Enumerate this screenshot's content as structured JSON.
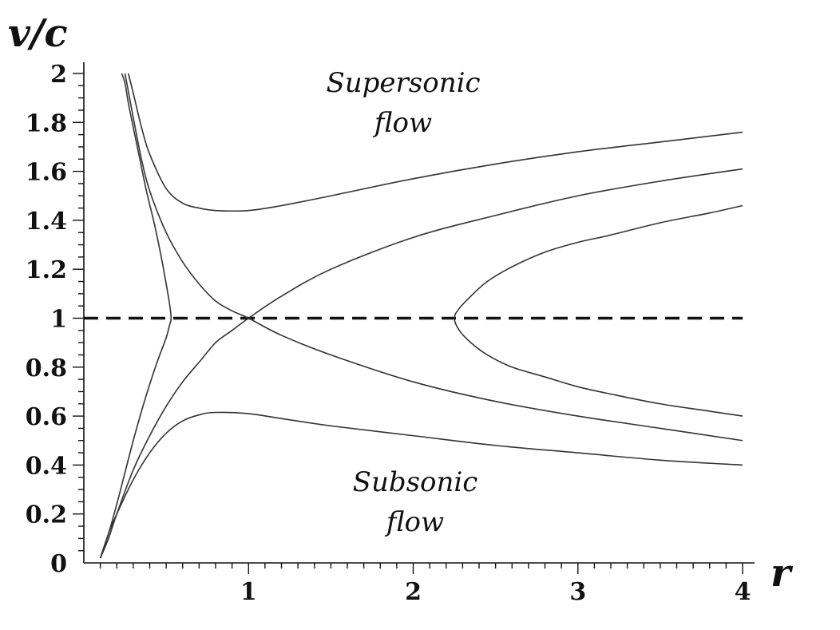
{
  "chart_data": {
    "type": "line",
    "xlabel": "r",
    "ylabel": "v/c",
    "xlim": [
      0,
      4
    ],
    "ylim": [
      0,
      2
    ],
    "x_ticks": [
      "1",
      "2",
      "3",
      "4"
    ],
    "y_ticks": [
      "0",
      "0.2",
      "0.4",
      "0.6",
      "0.8",
      "1",
      "1.2",
      "1.4",
      "1.6",
      "1.8",
      "2"
    ],
    "reference_line": {
      "y": 1,
      "style": "dashed"
    },
    "annotations": [
      {
        "lines": [
          "Supersonic",
          "flow"
        ]
      },
      {
        "lines": [
          "Subsonic",
          "flow"
        ]
      }
    ],
    "series": [
      {
        "x": [
          0.27,
          0.3,
          0.35,
          0.4,
          0.5,
          0.6,
          0.7,
          0.8,
          1.0,
          1.2,
          1.5,
          2.0,
          2.5,
          3.0,
          3.5,
          4.0
        ],
        "y": [
          2.0,
          1.92,
          1.78,
          1.67,
          1.53,
          1.47,
          1.45,
          1.44,
          1.44,
          1.46,
          1.5,
          1.57,
          1.63,
          1.68,
          1.72,
          1.76
        ]
      },
      {
        "x": [
          0.1,
          0.15,
          0.2,
          0.3,
          0.4,
          0.5,
          0.6,
          0.7,
          0.8,
          1.0,
          1.2,
          1.5,
          2.0,
          2.5,
          3.0,
          3.5,
          4.0
        ],
        "y": [
          0.02,
          0.12,
          0.2,
          0.34,
          0.45,
          0.53,
          0.58,
          0.605,
          0.615,
          0.61,
          0.59,
          0.56,
          0.52,
          0.48,
          0.45,
          0.42,
          0.4
        ]
      },
      {
        "x": [
          0.1,
          0.15,
          0.2,
          0.3,
          0.4,
          0.5,
          0.6,
          0.7,
          0.8,
          0.9,
          1.0,
          1.2,
          1.5,
          2.0,
          2.5,
          3.0,
          3.5,
          4.0
        ],
        "y": [
          0.02,
          0.1,
          0.2,
          0.38,
          0.52,
          0.64,
          0.74,
          0.82,
          0.9,
          0.95,
          1.0,
          1.09,
          1.2,
          1.33,
          1.42,
          1.5,
          1.56,
          1.61
        ]
      },
      {
        "x": [
          0.25,
          0.3,
          0.35,
          0.4,
          0.5,
          0.6,
          0.7,
          0.8,
          0.9,
          1.0,
          1.2,
          1.5,
          2.0,
          2.5,
          3.0,
          3.5,
          4.0
        ],
        "y": [
          2.0,
          1.82,
          1.65,
          1.52,
          1.35,
          1.23,
          1.14,
          1.07,
          1.03,
          1.0,
          0.93,
          0.85,
          0.74,
          0.66,
          0.6,
          0.55,
          0.5
        ]
      },
      {
        "x": [
          0.1,
          0.15,
          0.2,
          0.25,
          0.3,
          0.35,
          0.4,
          0.45,
          0.5,
          0.52,
          0.53,
          0.52,
          0.5,
          0.47,
          0.43,
          0.38,
          0.34,
          0.3,
          0.27,
          0.25,
          0.23
        ],
        "y": [
          0.02,
          0.12,
          0.24,
          0.37,
          0.5,
          0.62,
          0.73,
          0.83,
          0.92,
          0.97,
          1.0,
          1.06,
          1.14,
          1.25,
          1.38,
          1.52,
          1.65,
          1.78,
          1.88,
          1.96,
          2.0
        ]
      },
      {
        "x": [
          4.0,
          3.8,
          3.5,
          3.2,
          3.0,
          2.8,
          2.6,
          2.45,
          2.35,
          2.28,
          2.25,
          2.28,
          2.35,
          2.45,
          2.6,
          2.8,
          3.0,
          3.2,
          3.5,
          3.8,
          4.0
        ],
        "y": [
          1.46,
          1.43,
          1.39,
          1.34,
          1.31,
          1.27,
          1.21,
          1.15,
          1.09,
          1.04,
          1.0,
          0.95,
          0.9,
          0.85,
          0.8,
          0.76,
          0.72,
          0.69,
          0.65,
          0.62,
          0.6
        ]
      }
    ]
  }
}
